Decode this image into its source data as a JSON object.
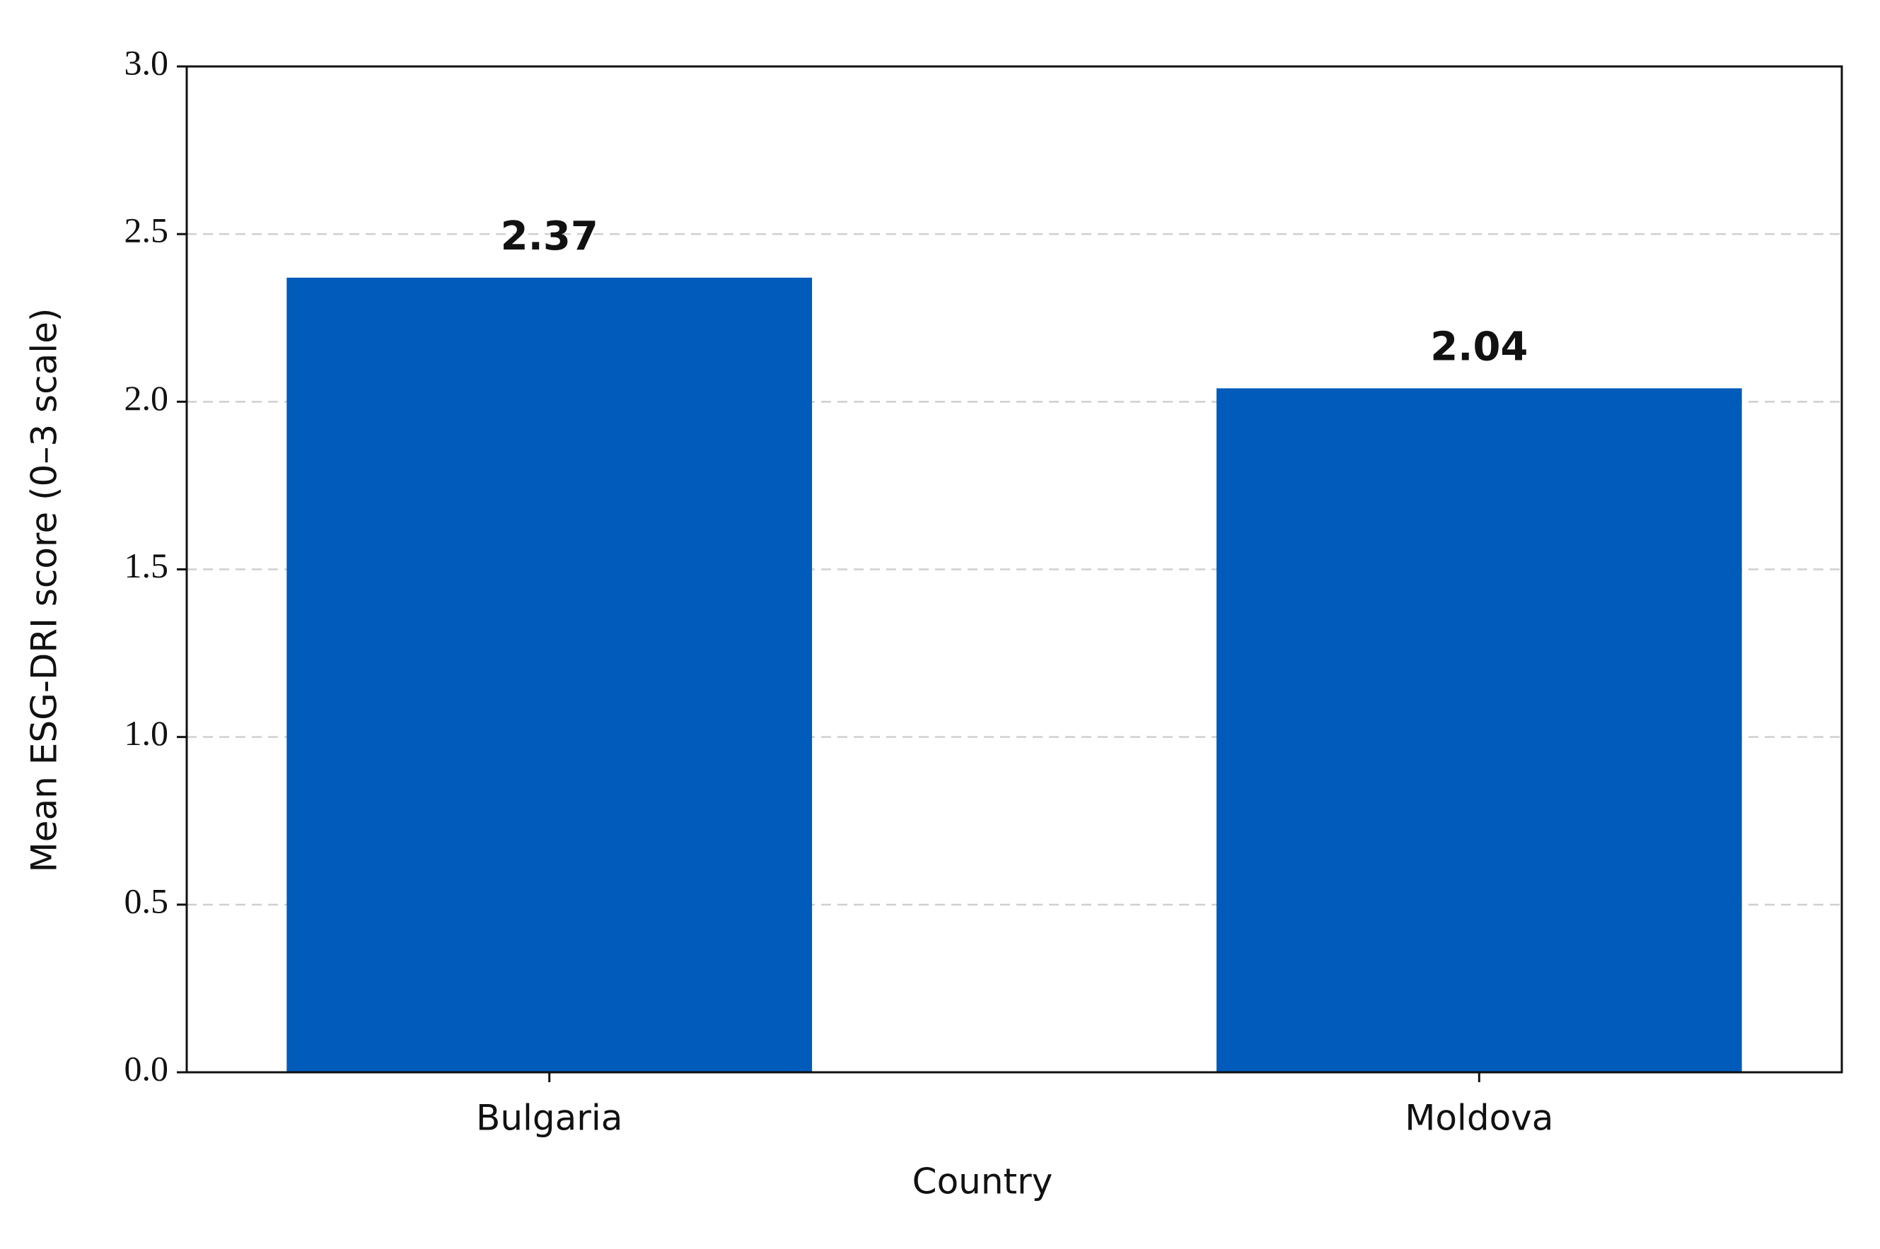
{
  "chart_data": {
    "type": "bar",
    "x_label": "Country",
    "y_label": "Mean ESG-DRI score (0–3 scale)",
    "categories": [
      "Bulgaria",
      "Moldova"
    ],
    "values": [
      2.37,
      2.04
    ],
    "color": "#005bbb",
    "ylim": [
      0,
      3
    ],
    "yticks": [
      {
        "value": 0,
        "label": "0.0"
      },
      0.5,
      {
        "value": 1,
        "label": "1.0"
      },
      1.5,
      {
        "value": 2,
        "label": "2.0"
      },
      2.5,
      {
        "value": 3,
        "label": "3.0"
      }
    ],
    "grid": true
  }
}
